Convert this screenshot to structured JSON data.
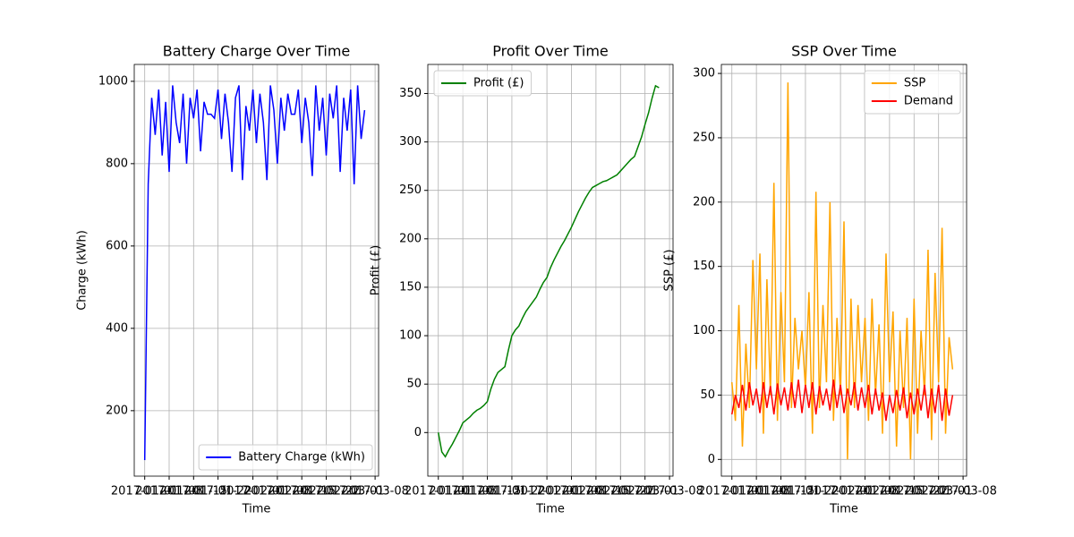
{
  "chart_data": [
    {
      "type": "line",
      "title": "Battery Charge Over Time",
      "xlabel": "Time",
      "ylabel": "Charge (kWh)",
      "x": [
        "2017-01-01",
        "2017-01-02",
        "2017-01-03",
        "2017-01-04",
        "2017-01-05",
        "2017-01-06",
        "2017-01-07",
        "2017-01-08",
        "2017-01-09",
        "2017-01-10",
        "2017-01-11",
        "2017-01-12",
        "2017-01-13",
        "2017-01-14",
        "2017-01-15",
        "2017-01-16",
        "2017-01-17",
        "2017-01-18",
        "2017-01-19",
        "2017-01-20",
        "2017-01-21",
        "2017-01-22",
        "2017-01-23",
        "2017-01-24",
        "2017-01-25",
        "2017-01-26",
        "2017-01-27",
        "2017-01-28",
        "2017-01-29",
        "2017-01-30",
        "2017-01-31",
        "2017-02-01",
        "2017-02-02",
        "2017-02-03",
        "2017-02-04",
        "2017-02-05",
        "2017-02-06",
        "2017-02-07",
        "2017-02-08",
        "2017-02-09",
        "2017-02-10",
        "2017-02-11",
        "2017-02-12",
        "2017-02-13",
        "2017-02-14",
        "2017-02-15",
        "2017-02-16",
        "2017-02-17",
        "2017-02-18",
        "2017-02-19",
        "2017-02-20",
        "2017-02-21",
        "2017-02-22",
        "2017-02-23",
        "2017-02-24",
        "2017-02-25",
        "2017-02-26",
        "2017-02-27",
        "2017-02-28",
        "2017-03-01",
        "2017-03-02",
        "2017-03-03",
        "2017-03-04",
        "2017-03-05"
      ],
      "series": [
        {
          "name": "Battery Charge (kWh)",
          "color": "#0000ff",
          "values": [
            80,
            750,
            960,
            870,
            980,
            820,
            950,
            780,
            990,
            900,
            850,
            970,
            800,
            960,
            910,
            980,
            830,
            950,
            920,
            920,
            910,
            980,
            860,
            970,
            900,
            780,
            960,
            990,
            760,
            940,
            880,
            980,
            850,
            970,
            900,
            760,
            990,
            930,
            800,
            960,
            880,
            970,
            920,
            920,
            980,
            850,
            960,
            900,
            770,
            990,
            880,
            960,
            820,
            970,
            910,
            990,
            780,
            960,
            880,
            980,
            750,
            990,
            860,
            930
          ]
        }
      ],
      "xlim": [
        "2016-12-29",
        "2017-03-09"
      ],
      "xticks": [
        "2017-01-01",
        "2017-01-08",
        "2017-01-15",
        "2017-01-22",
        "2017-02-01",
        "2017-02-08",
        "2017-02-15",
        "2017-02-22",
        "2017-03-01",
        "2017-03-08"
      ],
      "ylim": [
        41,
        1041
      ],
      "yticks": [
        200,
        400,
        600,
        800,
        1000
      ],
      "grid": true,
      "legend": "lower right"
    },
    {
      "type": "line",
      "title": "Profit Over Time",
      "xlabel": "Time",
      "ylabel": "Profit (£)",
      "x": [
        "2017-01-01",
        "2017-01-02",
        "2017-01-03",
        "2017-01-04",
        "2017-01-05",
        "2017-01-06",
        "2017-01-07",
        "2017-01-08",
        "2017-01-09",
        "2017-01-10",
        "2017-01-11",
        "2017-01-12",
        "2017-01-13",
        "2017-01-14",
        "2017-01-15",
        "2017-01-16",
        "2017-01-17",
        "2017-01-18",
        "2017-01-19",
        "2017-01-20",
        "2017-01-21",
        "2017-01-22",
        "2017-01-23",
        "2017-01-24",
        "2017-01-25",
        "2017-01-26",
        "2017-01-27",
        "2017-01-28",
        "2017-01-29",
        "2017-01-30",
        "2017-01-31",
        "2017-02-01",
        "2017-02-02",
        "2017-02-03",
        "2017-02-04",
        "2017-02-05",
        "2017-02-06",
        "2017-02-07",
        "2017-02-08",
        "2017-02-09",
        "2017-02-10",
        "2017-02-11",
        "2017-02-12",
        "2017-02-13",
        "2017-02-14",
        "2017-02-15",
        "2017-02-16",
        "2017-02-17",
        "2017-02-18",
        "2017-02-19",
        "2017-02-20",
        "2017-02-21",
        "2017-02-22",
        "2017-02-23",
        "2017-02-24",
        "2017-02-25",
        "2017-02-26",
        "2017-02-27",
        "2017-02-28",
        "2017-03-01",
        "2017-03-02",
        "2017-03-03",
        "2017-03-04",
        "2017-03-05"
      ],
      "series": [
        {
          "name": "Profit (£)",
          "color": "#008000",
          "values": [
            0,
            -20,
            -25,
            -18,
            -12,
            -5,
            2,
            10,
            13,
            16,
            20,
            23,
            25,
            28,
            32,
            45,
            55,
            62,
            65,
            68,
            85,
            100,
            106,
            110,
            118,
            125,
            130,
            135,
            140,
            148,
            155,
            160,
            170,
            178,
            185,
            192,
            198,
            205,
            212,
            220,
            228,
            235,
            242,
            248,
            253,
            255,
            257,
            259,
            260,
            262,
            264,
            266,
            270,
            274,
            278,
            282,
            285,
            295,
            305,
            318,
            330,
            345,
            358,
            356
          ]
        }
      ],
      "xlim": [
        "2016-12-29",
        "2017-03-09"
      ],
      "xticks": [
        "2017-01-01",
        "2017-01-08",
        "2017-01-15",
        "2017-01-22",
        "2017-02-01",
        "2017-02-08",
        "2017-02-15",
        "2017-02-22",
        "2017-03-01",
        "2017-03-08"
      ],
      "ylim": [
        -45,
        380
      ],
      "yticks": [
        0,
        50,
        100,
        150,
        200,
        250,
        300,
        350
      ],
      "grid": true,
      "legend": "upper left"
    },
    {
      "type": "line",
      "title": "SSP Over Time",
      "xlabel": "Time",
      "ylabel": "SSP (£)",
      "x": [
        "2017-01-01",
        "2017-01-02",
        "2017-01-03",
        "2017-01-04",
        "2017-01-05",
        "2017-01-06",
        "2017-01-07",
        "2017-01-08",
        "2017-01-09",
        "2017-01-10",
        "2017-01-11",
        "2017-01-12",
        "2017-01-13",
        "2017-01-14",
        "2017-01-15",
        "2017-01-16",
        "2017-01-17",
        "2017-01-18",
        "2017-01-19",
        "2017-01-20",
        "2017-01-21",
        "2017-01-22",
        "2017-01-23",
        "2017-01-24",
        "2017-01-25",
        "2017-01-26",
        "2017-01-27",
        "2017-01-28",
        "2017-01-29",
        "2017-01-30",
        "2017-01-31",
        "2017-02-01",
        "2017-02-02",
        "2017-02-03",
        "2017-02-04",
        "2017-02-05",
        "2017-02-06",
        "2017-02-07",
        "2017-02-08",
        "2017-02-09",
        "2017-02-10",
        "2017-02-11",
        "2017-02-12",
        "2017-02-13",
        "2017-02-14",
        "2017-02-15",
        "2017-02-16",
        "2017-02-17",
        "2017-02-18",
        "2017-02-19",
        "2017-02-20",
        "2017-02-21",
        "2017-02-22",
        "2017-02-23",
        "2017-02-24",
        "2017-02-25",
        "2017-02-26",
        "2017-02-27",
        "2017-02-28",
        "2017-03-01",
        "2017-03-02",
        "2017-03-03",
        "2017-03-04",
        "2017-03-05"
      ],
      "series": [
        {
          "name": "SSP",
          "color": "#ffa500",
          "values": [
            60,
            30,
            120,
            10,
            90,
            40,
            155,
            70,
            160,
            20,
            140,
            50,
            215,
            30,
            130,
            60,
            293,
            40,
            110,
            70,
            100,
            55,
            130,
            20,
            208,
            40,
            120,
            60,
            200,
            30,
            110,
            50,
            185,
            0,
            125,
            40,
            120,
            60,
            110,
            30,
            125,
            50,
            105,
            20,
            160,
            60,
            115,
            10,
            100,
            40,
            110,
            0,
            125,
            20,
            100,
            50,
            163,
            15,
            145,
            60,
            180,
            20,
            95,
            70
          ]
        },
        {
          "name": "Demand",
          "color": "#ff0000",
          "values": [
            35,
            50,
            40,
            58,
            38,
            60,
            42,
            55,
            36,
            60,
            40,
            57,
            35,
            59,
            42,
            56,
            38,
            60,
            40,
            62,
            36,
            58,
            40,
            60,
            35,
            57,
            42,
            55,
            38,
            62,
            40,
            58,
            36,
            55,
            42,
            60,
            38,
            56,
            40,
            58,
            35,
            55,
            38,
            52,
            30,
            50,
            36,
            54,
            38,
            56,
            32,
            52,
            35,
            55,
            38,
            58,
            32,
            55,
            36,
            58,
            30,
            55,
            34,
            50
          ]
        }
      ],
      "xlim": [
        "2016-12-29",
        "2017-03-09"
      ],
      "xticks": [
        "2017-01-01",
        "2017-01-08",
        "2017-01-15",
        "2017-01-22",
        "2017-02-01",
        "2017-02-08",
        "2017-02-15",
        "2017-02-22",
        "2017-03-01",
        "2017-03-08"
      ],
      "ylim": [
        -13,
        307
      ],
      "yticks": [
        0,
        50,
        100,
        150,
        200,
        250,
        300
      ],
      "grid": true,
      "legend": "upper right"
    }
  ]
}
